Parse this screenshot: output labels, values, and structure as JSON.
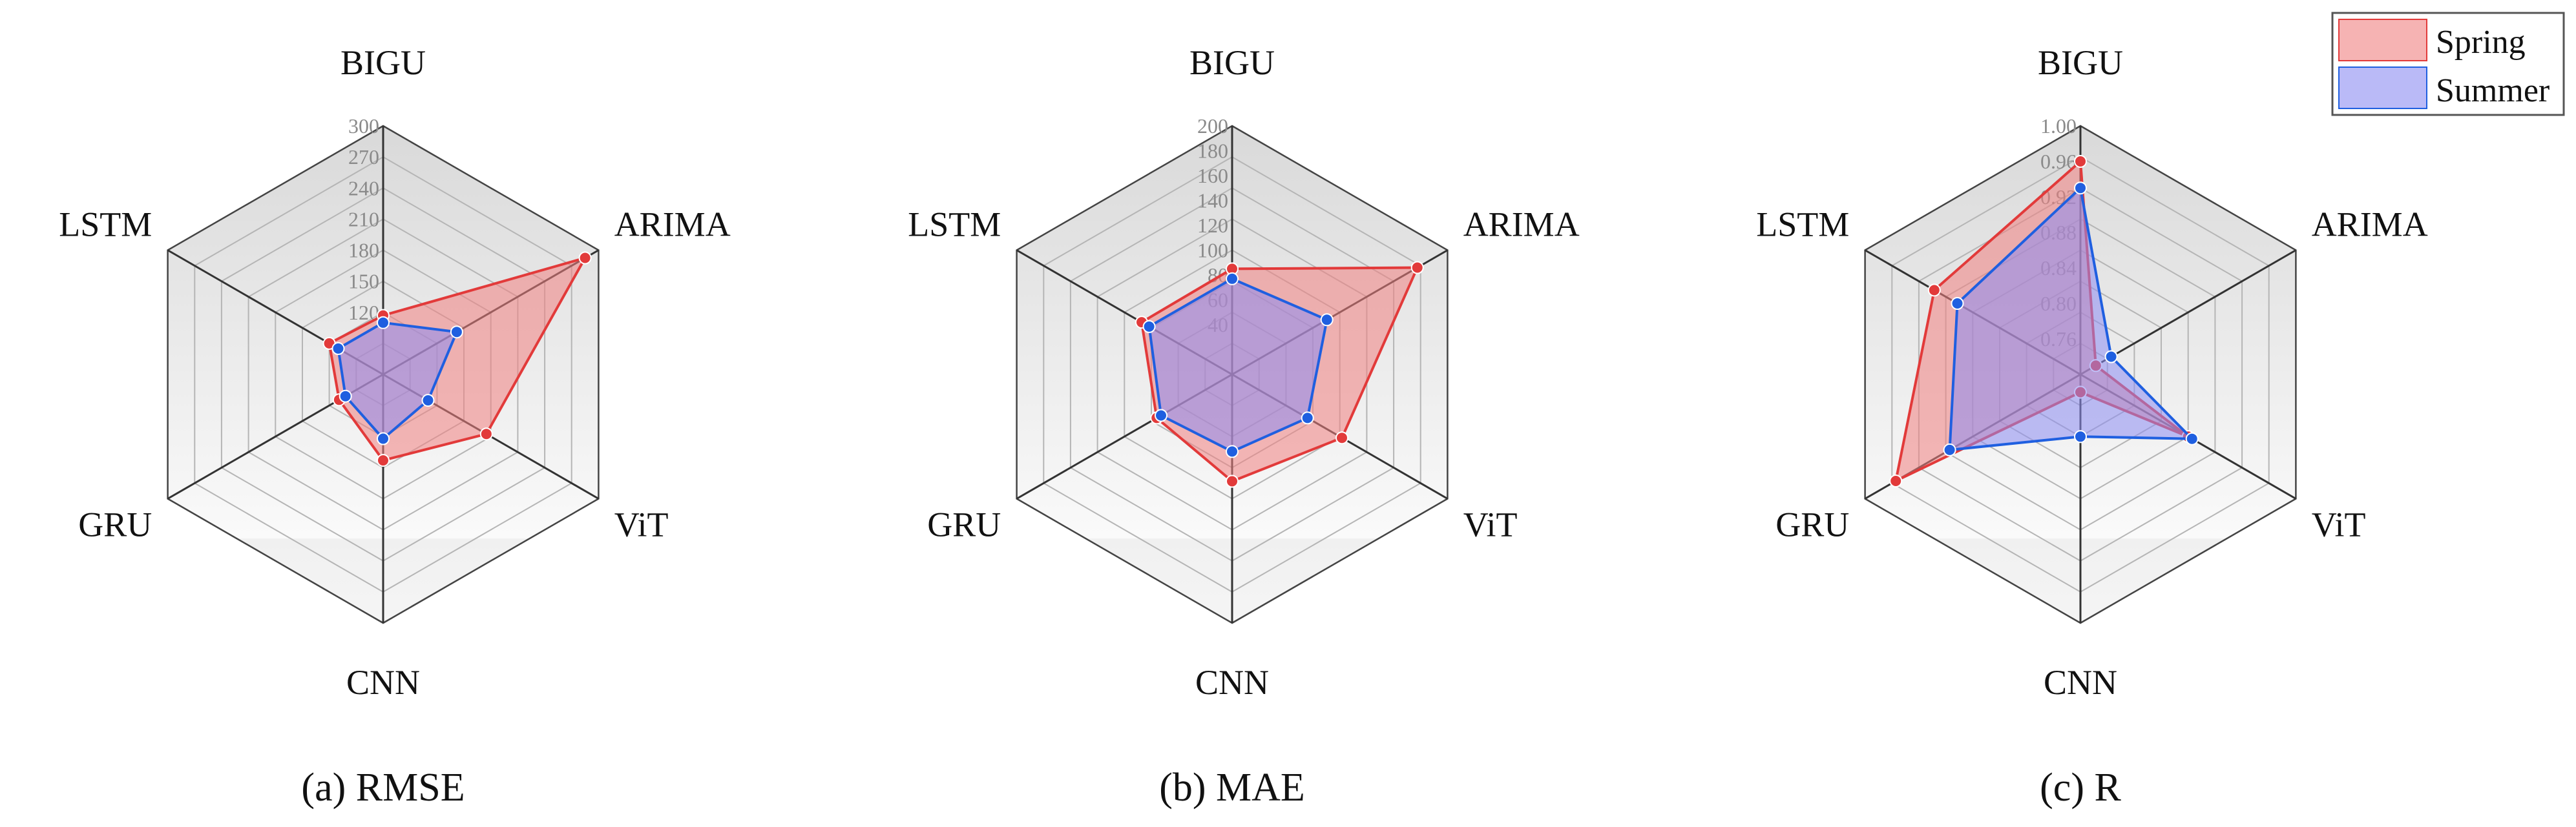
{
  "colors": {
    "spring_fill": "#f08080",
    "spring_line": "#e23a3a",
    "summer_fill": "#8c8cf2",
    "summer_line": "#1f5fe0"
  },
  "legend": {
    "position": "top-right",
    "items": [
      "Spring",
      "Summer"
    ]
  },
  "chart_data": [
    {
      "type": "radar",
      "caption": "(a) RMSE",
      "axes": [
        "BIGU",
        "ARIMA",
        "ViT",
        "CNN",
        "GRU",
        "LSTM"
      ],
      "rlim": [
        60,
        300
      ],
      "ticks": [
        "300",
        "270",
        "240",
        "210",
        "180",
        "150",
        "120"
      ],
      "tick_values": [
        300,
        270,
        240,
        210,
        180,
        150,
        120
      ],
      "grid": true,
      "series": [
        {
          "name": "Spring",
          "values": [
            117,
            285,
            175,
            143,
            109,
            120
          ]
        },
        {
          "name": "Summer",
          "values": [
            110,
            142,
            110,
            122,
            102,
            110
          ]
        }
      ]
    },
    {
      "type": "radar",
      "caption": "(b) MAE",
      "axes": [
        "BIGU",
        "ARIMA",
        "ViT",
        "CNN",
        "GRU",
        "LSTM"
      ],
      "rlim": [
        0,
        200
      ],
      "ticks": [
        "200",
        "180",
        "160",
        "140",
        "120",
        "100",
        "80",
        "60",
        "40"
      ],
      "tick_values": [
        200,
        180,
        160,
        140,
        120,
        100,
        80,
        60,
        40
      ],
      "grid": true,
      "series": [
        {
          "name": "Spring",
          "values": [
            85,
            172,
            102,
            86,
            70,
            84
          ]
        },
        {
          "name": "Summer",
          "values": [
            77,
            88,
            70,
            62,
            66,
            77
          ]
        }
      ]
    },
    {
      "type": "radar",
      "caption": "(c) R",
      "axes": [
        "BIGU",
        "ARIMA",
        "ViT",
        "CNN",
        "GRU",
        "LSTM"
      ],
      "rlim": [
        0.72,
        1.0
      ],
      "ticks": [
        "1.00",
        "0.96",
        "0.92",
        "0.88",
        "0.84",
        "0.80",
        "0.76"
      ],
      "tick_values": [
        1.0,
        0.96,
        0.92,
        0.88,
        0.84,
        0.8,
        0.76
      ],
      "grid": true,
      "series": [
        {
          "name": "Spring",
          "values": [
            0.96,
            0.74,
            0.86,
            0.74,
            0.96,
            0.91
          ]
        },
        {
          "name": "Summer",
          "values": [
            0.93,
            0.76,
            0.865,
            0.79,
            0.89,
            0.88
          ]
        }
      ]
    }
  ]
}
